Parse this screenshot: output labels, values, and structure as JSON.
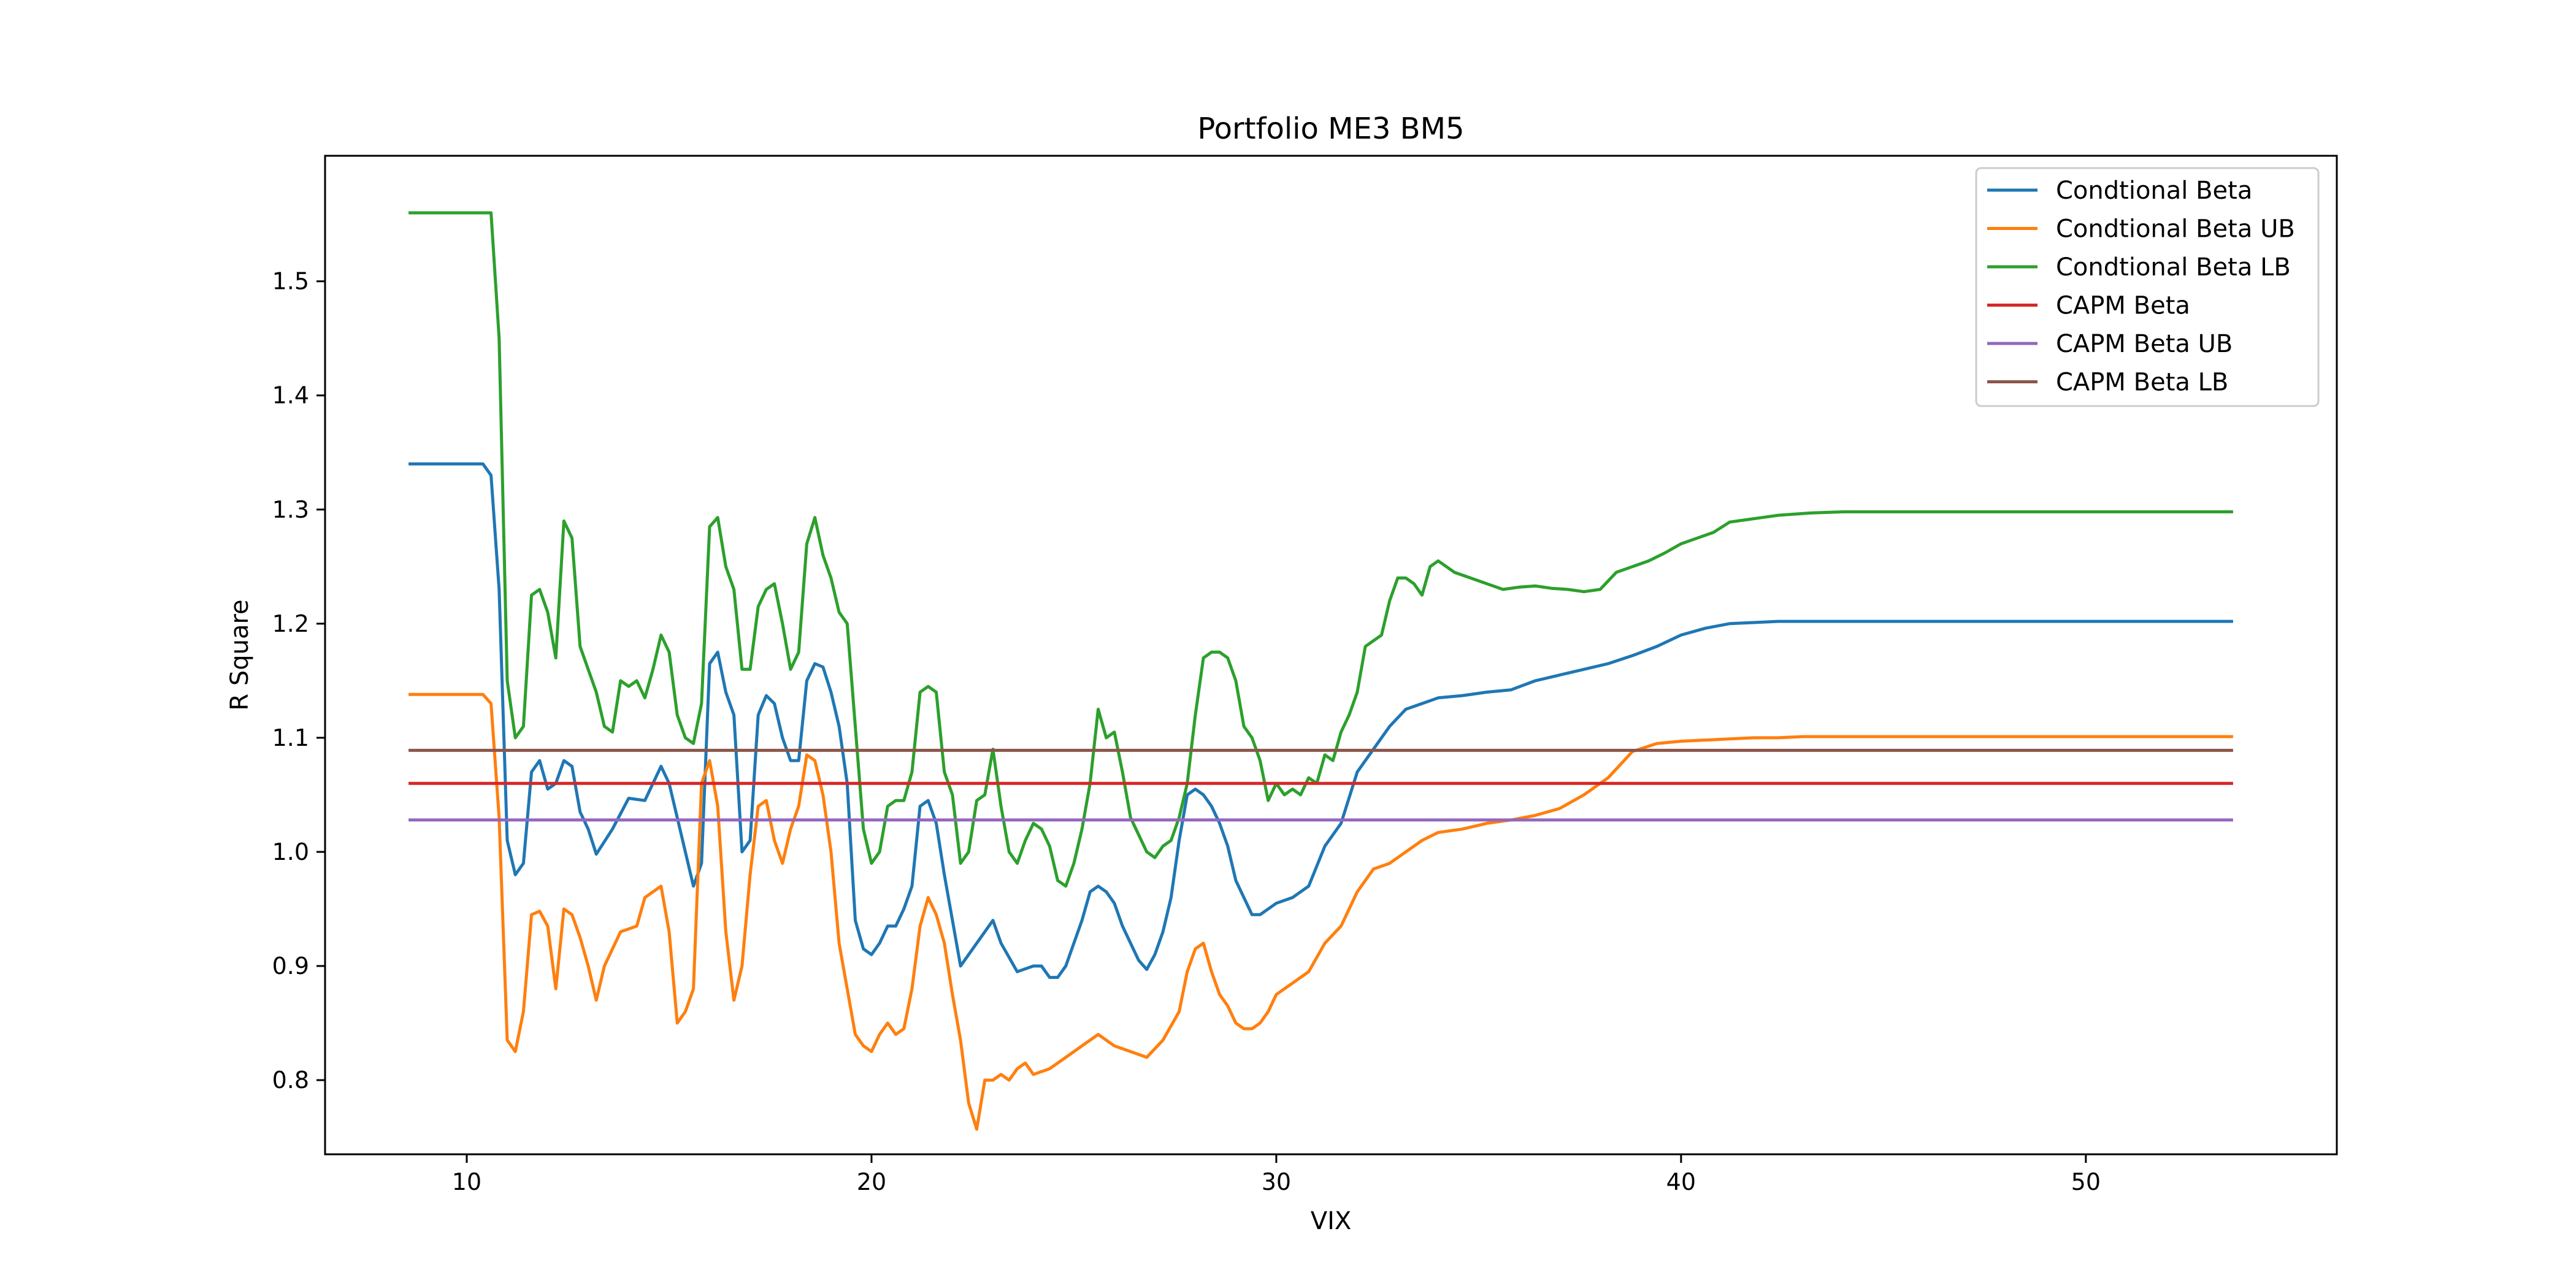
{
  "chart_data": {
    "type": "line",
    "title": "Portfolio ME3 BM5",
    "xlabel": "VIX",
    "ylabel": "R Square",
    "xlim": [
      6.5,
      56.2
    ],
    "ylim": [
      0.735,
      1.61
    ],
    "xticks": [
      10,
      20,
      30,
      40,
      50
    ],
    "yticks": [
      0.8,
      0.9,
      1.0,
      1.1,
      1.2,
      1.3,
      1.4,
      1.5
    ],
    "grid": false,
    "legend_position": "top-right",
    "series": [
      {
        "name": "Condtional Beta",
        "color": "#1f77b4",
        "x": [
          8.6,
          10.4,
          10.6,
          10.8,
          11.0,
          11.2,
          11.4,
          11.6,
          11.8,
          12.0,
          12.2,
          12.4,
          12.6,
          12.8,
          13.0,
          13.2,
          13.6,
          14.0,
          14.4,
          14.8,
          15.0,
          15.2,
          15.4,
          15.6,
          15.8,
          16.0,
          16.2,
          16.4,
          16.6,
          16.8,
          17.0,
          17.2,
          17.4,
          17.6,
          17.8,
          18.0,
          18.2,
          18.4,
          18.6,
          18.8,
          19.0,
          19.2,
          19.4,
          19.6,
          19.8,
          20.0,
          20.2,
          20.4,
          20.6,
          20.8,
          21.0,
          21.2,
          21.4,
          21.6,
          21.8,
          22.0,
          22.2,
          22.6,
          23.0,
          23.2,
          23.6,
          24.0,
          24.2,
          24.4,
          24.6,
          24.8,
          25.0,
          25.2,
          25.4,
          25.6,
          25.8,
          26.0,
          26.2,
          26.4,
          26.6,
          26.8,
          27.0,
          27.2,
          27.4,
          27.6,
          27.8,
          28.0,
          28.2,
          28.4,
          28.6,
          28.8,
          29.0,
          29.2,
          29.4,
          29.6,
          29.8,
          30.0,
          30.4,
          30.8,
          31.2,
          31.6,
          32.0,
          32.4,
          32.8,
          33.2,
          33.6,
          34.0,
          34.6,
          35.2,
          35.8,
          36.4,
          37.0,
          37.6,
          38.2,
          38.8,
          39.4,
          40.0,
          40.6,
          41.2,
          41.8,
          42.4,
          43.0,
          44.0,
          46.0,
          48.0,
          50.0,
          52.0,
          53.6
        ],
        "y": [
          1.34,
          1.34,
          1.33,
          1.23,
          1.01,
          0.98,
          0.99,
          1.07,
          1.08,
          1.055,
          1.06,
          1.08,
          1.075,
          1.035,
          1.02,
          0.998,
          1.02,
          1.047,
          1.045,
          1.075,
          1.06,
          1.03,
          1.0,
          0.97,
          0.99,
          1.165,
          1.175,
          1.14,
          1.12,
          1.0,
          1.01,
          1.12,
          1.137,
          1.13,
          1.1,
          1.08,
          1.08,
          1.15,
          1.165,
          1.162,
          1.14,
          1.11,
          1.06,
          0.94,
          0.915,
          0.91,
          0.92,
          0.935,
          0.935,
          0.95,
          0.97,
          1.04,
          1.045,
          1.025,
          0.98,
          0.94,
          0.9,
          0.92,
          0.94,
          0.92,
          0.895,
          0.9,
          0.9,
          0.89,
          0.89,
          0.9,
          0.92,
          0.94,
          0.965,
          0.97,
          0.965,
          0.955,
          0.935,
          0.92,
          0.905,
          0.897,
          0.91,
          0.93,
          0.96,
          1.01,
          1.05,
          1.055,
          1.05,
          1.04,
          1.025,
          1.005,
          0.975,
          0.96,
          0.945,
          0.945,
          0.95,
          0.955,
          0.96,
          0.97,
          1.005,
          1.025,
          1.07,
          1.09,
          1.11,
          1.125,
          1.13,
          1.135,
          1.137,
          1.14,
          1.142,
          1.15,
          1.155,
          1.16,
          1.165,
          1.172,
          1.18,
          1.19,
          1.196,
          1.2,
          1.201,
          1.202,
          1.202,
          1.202,
          1.202,
          1.202,
          1.202,
          1.202,
          1.202
        ]
      },
      {
        "name": "Condtional Beta UB",
        "color": "#ff7f0e",
        "x": [
          8.6,
          10.4,
          10.6,
          10.8,
          11.0,
          11.2,
          11.4,
          11.6,
          11.8,
          12.0,
          12.2,
          12.4,
          12.6,
          12.8,
          13.0,
          13.2,
          13.4,
          13.8,
          14.2,
          14.4,
          14.6,
          14.8,
          15.0,
          15.2,
          15.4,
          15.6,
          15.8,
          16.0,
          16.2,
          16.4,
          16.6,
          16.8,
          17.0,
          17.2,
          17.4,
          17.6,
          17.8,
          18.0,
          18.2,
          18.4,
          18.6,
          18.8,
          19.0,
          19.2,
          19.4,
          19.6,
          19.8,
          20.0,
          20.2,
          20.4,
          20.6,
          20.8,
          21.0,
          21.2,
          21.4,
          21.6,
          21.8,
          22.0,
          22.2,
          22.4,
          22.6,
          22.8,
          23.0,
          23.2,
          23.4,
          23.6,
          23.8,
          24.0,
          24.4,
          24.8,
          25.2,
          25.6,
          26.0,
          26.4,
          26.8,
          27.2,
          27.6,
          27.8,
          28.0,
          28.2,
          28.4,
          28.6,
          28.8,
          29.0,
          29.2,
          29.4,
          29.6,
          29.8,
          30.0,
          30.4,
          30.8,
          31.2,
          31.6,
          32.0,
          32.4,
          32.8,
          33.2,
          33.6,
          34.0,
          34.6,
          35.2,
          35.8,
          36.4,
          37.0,
          37.6,
          38.2,
          38.8,
          39.4,
          40.0,
          40.6,
          41.2,
          41.8,
          42.4,
          43.0,
          44.0,
          46.0,
          48.0,
          50.0,
          52.0,
          53.6
        ],
        "y": [
          1.138,
          1.138,
          1.13,
          1.03,
          0.835,
          0.825,
          0.86,
          0.945,
          0.948,
          0.935,
          0.88,
          0.95,
          0.945,
          0.925,
          0.9,
          0.87,
          0.9,
          0.93,
          0.935,
          0.96,
          0.965,
          0.97,
          0.93,
          0.85,
          0.86,
          0.88,
          1.06,
          1.08,
          1.04,
          0.93,
          0.87,
          0.9,
          0.98,
          1.04,
          1.045,
          1.01,
          0.99,
          1.02,
          1.04,
          1.085,
          1.08,
          1.05,
          1.0,
          0.92,
          0.88,
          0.84,
          0.83,
          0.825,
          0.84,
          0.85,
          0.84,
          0.845,
          0.88,
          0.935,
          0.96,
          0.945,
          0.92,
          0.875,
          0.835,
          0.78,
          0.757,
          0.8,
          0.8,
          0.805,
          0.8,
          0.81,
          0.815,
          0.805,
          0.81,
          0.82,
          0.83,
          0.84,
          0.83,
          0.825,
          0.82,
          0.835,
          0.86,
          0.895,
          0.915,
          0.92,
          0.895,
          0.875,
          0.865,
          0.85,
          0.845,
          0.845,
          0.85,
          0.86,
          0.875,
          0.885,
          0.895,
          0.92,
          0.935,
          0.965,
          0.985,
          0.99,
          1.0,
          1.01,
          1.017,
          1.02,
          1.025,
          1.028,
          1.032,
          1.038,
          1.05,
          1.065,
          1.088,
          1.095,
          1.097,
          1.098,
          1.099,
          1.1,
          1.1,
          1.101,
          1.101,
          1.101,
          1.101,
          1.101,
          1.101,
          1.101
        ]
      },
      {
        "name": "Condtional Beta LB",
        "color": "#2ca02c",
        "x": [
          8.6,
          10.4,
          10.6,
          10.8,
          11.0,
          11.2,
          11.4,
          11.6,
          11.8,
          12.0,
          12.2,
          12.4,
          12.6,
          12.8,
          13.0,
          13.2,
          13.4,
          13.6,
          13.8,
          14.0,
          14.2,
          14.4,
          14.6,
          14.8,
          15.0,
          15.2,
          15.4,
          15.6,
          15.8,
          16.0,
          16.2,
          16.4,
          16.6,
          16.8,
          17.0,
          17.2,
          17.4,
          17.6,
          17.8,
          18.0,
          18.2,
          18.4,
          18.6,
          18.8,
          19.0,
          19.2,
          19.4,
          19.6,
          19.8,
          20.0,
          20.2,
          20.4,
          20.6,
          20.8,
          21.0,
          21.2,
          21.4,
          21.6,
          21.8,
          22.0,
          22.2,
          22.4,
          22.6,
          22.8,
          23.0,
          23.2,
          23.4,
          23.6,
          23.8,
          24.0,
          24.2,
          24.4,
          24.6,
          24.8,
          25.0,
          25.2,
          25.4,
          25.6,
          25.8,
          26.0,
          26.2,
          26.4,
          26.6,
          26.8,
          27.0,
          27.2,
          27.4,
          27.6,
          27.8,
          28.0,
          28.2,
          28.4,
          28.6,
          28.8,
          29.0,
          29.2,
          29.4,
          29.6,
          29.8,
          30.0,
          30.2,
          30.4,
          30.6,
          30.8,
          31.0,
          31.2,
          31.4,
          31.6,
          31.8,
          32.0,
          32.2,
          32.4,
          32.6,
          32.8,
          33.0,
          33.2,
          33.4,
          33.6,
          33.8,
          34.0,
          34.4,
          34.8,
          35.2,
          35.6,
          36.0,
          36.4,
          36.8,
          37.2,
          37.6,
          38.0,
          38.4,
          38.8,
          39.2,
          39.6,
          40.0,
          40.4,
          40.8,
          41.2,
          41.6,
          42.0,
          42.4,
          42.8,
          43.2,
          44.0,
          46.0,
          48.0,
          50.0,
          52.0,
          53.6
        ],
        "y": [
          1.56,
          1.56,
          1.56,
          1.45,
          1.15,
          1.1,
          1.11,
          1.225,
          1.23,
          1.21,
          1.17,
          1.29,
          1.275,
          1.18,
          1.16,
          1.14,
          1.11,
          1.105,
          1.15,
          1.145,
          1.15,
          1.135,
          1.16,
          1.19,
          1.175,
          1.12,
          1.1,
          1.095,
          1.13,
          1.285,
          1.293,
          1.25,
          1.23,
          1.16,
          1.16,
          1.215,
          1.23,
          1.235,
          1.2,
          1.16,
          1.175,
          1.27,
          1.293,
          1.26,
          1.24,
          1.21,
          1.2,
          1.11,
          1.02,
          0.99,
          1.0,
          1.04,
          1.045,
          1.045,
          1.07,
          1.14,
          1.145,
          1.14,
          1.07,
          1.05,
          0.99,
          1.0,
          1.045,
          1.05,
          1.09,
          1.04,
          1.0,
          0.99,
          1.01,
          1.025,
          1.02,
          1.005,
          0.975,
          0.97,
          0.99,
          1.02,
          1.06,
          1.125,
          1.1,
          1.105,
          1.07,
          1.03,
          1.015,
          1.0,
          0.995,
          1.005,
          1.01,
          1.03,
          1.06,
          1.12,
          1.17,
          1.175,
          1.175,
          1.17,
          1.15,
          1.11,
          1.1,
          1.08,
          1.045,
          1.06,
          1.05,
          1.055,
          1.05,
          1.065,
          1.06,
          1.085,
          1.08,
          1.105,
          1.12,
          1.14,
          1.18,
          1.185,
          1.19,
          1.22,
          1.24,
          1.24,
          1.235,
          1.225,
          1.25,
          1.255,
          1.245,
          1.24,
          1.235,
          1.23,
          1.232,
          1.233,
          1.231,
          1.23,
          1.228,
          1.23,
          1.245,
          1.25,
          1.255,
          1.262,
          1.27,
          1.275,
          1.28,
          1.289,
          1.291,
          1.293,
          1.295,
          1.296,
          1.297,
          1.298,
          1.298,
          1.298,
          1.298,
          1.298,
          1.298
        ]
      },
      {
        "name": "CAPM Beta",
        "color": "#d62728",
        "x": [
          8.6,
          53.6
        ],
        "y": [
          1.06,
          1.06
        ]
      },
      {
        "name": "CAPM Beta UB",
        "color": "#9467bd",
        "x": [
          8.6,
          53.6
        ],
        "y": [
          1.028,
          1.028
        ]
      },
      {
        "name": "CAPM Beta LB",
        "color": "#8c564b",
        "x": [
          8.6,
          53.6
        ],
        "y": [
          1.089,
          1.089
        ]
      }
    ]
  }
}
